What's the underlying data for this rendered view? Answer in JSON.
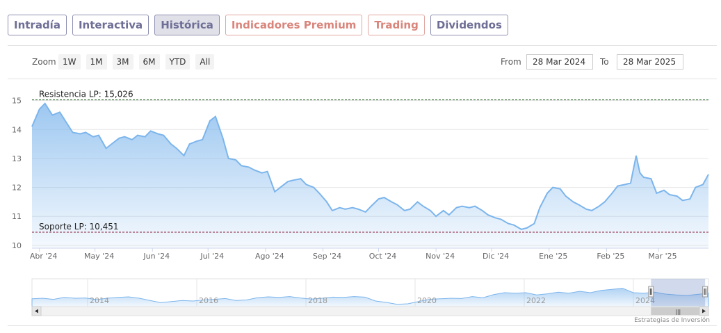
{
  "tabs": [
    {
      "label": "Intradía",
      "active": false,
      "premium": false
    },
    {
      "label": "Interactiva",
      "active": false,
      "premium": false
    },
    {
      "label": "Histórica",
      "active": true,
      "premium": false
    },
    {
      "label": "Indicadores Premium",
      "active": false,
      "premium": true
    },
    {
      "label": "Trading",
      "active": false,
      "premium": true
    },
    {
      "label": "Dividendos",
      "active": false,
      "premium": false
    }
  ],
  "toolbar": {
    "zoom_label": "Zoom",
    "zoom_buttons": [
      "1W",
      "1M",
      "3M",
      "6M",
      "YTD",
      "All"
    ],
    "from_label": "From",
    "from_value": "28 Mar 2024",
    "to_label": "To",
    "to_value": "28 Mar 2025"
  },
  "colors": {
    "line": "#7cb5ec",
    "resistance": "#2e6b2e",
    "support": "#8b1a3a",
    "tab_border": "#8e8eb2",
    "premium_tab": "#d9857b"
  },
  "chart_data": {
    "type": "area",
    "title": "",
    "xlabel": "",
    "ylabel": "",
    "x_start": "2024-03-28",
    "x_end": "2025-03-28",
    "ylim": [
      9.9,
      15.4
    ],
    "yticks": [
      10,
      11,
      12,
      13,
      14,
      15
    ],
    "xticks": [
      {
        "date": "2024-04-01",
        "label": "Abr '24"
      },
      {
        "date": "2024-05-01",
        "label": "May '24"
      },
      {
        "date": "2024-06-01",
        "label": "Jun '24"
      },
      {
        "date": "2024-07-01",
        "label": "Jul '24"
      },
      {
        "date": "2024-08-01",
        "label": "Ago '24"
      },
      {
        "date": "2024-09-01",
        "label": "Sep '24"
      },
      {
        "date": "2024-10-01",
        "label": "Oct '24"
      },
      {
        "date": "2024-11-01",
        "label": "Nov '24"
      },
      {
        "date": "2024-12-01",
        "label": "Dic '24"
      },
      {
        "date": "2025-01-01",
        "label": "Ene '25"
      },
      {
        "date": "2025-02-01",
        "label": "Feb '25"
      },
      {
        "date": "2025-03-01",
        "label": "Mar '25"
      }
    ],
    "grid": true,
    "series": [
      {
        "x": [
          "2024-03-28",
          "2024-04-01",
          "2024-04-04",
          "2024-04-08",
          "2024-04-12",
          "2024-04-16",
          "2024-04-19",
          "2024-04-23",
          "2024-04-26",
          "2024-04-30",
          "2024-05-03",
          "2024-05-07",
          "2024-05-10",
          "2024-05-14",
          "2024-05-17",
          "2024-05-21",
          "2024-05-24",
          "2024-05-28",
          "2024-05-31",
          "2024-06-04",
          "2024-06-07",
          "2024-06-11",
          "2024-06-14",
          "2024-06-18",
          "2024-06-21",
          "2024-06-25",
          "2024-06-28",
          "2024-07-02",
          "2024-07-05",
          "2024-07-09",
          "2024-07-12",
          "2024-07-16",
          "2024-07-19",
          "2024-07-23",
          "2024-07-26",
          "2024-07-30",
          "2024-08-02",
          "2024-08-06",
          "2024-08-09",
          "2024-08-13",
          "2024-08-16",
          "2024-08-20",
          "2024-08-23",
          "2024-08-27",
          "2024-08-30",
          "2024-09-03",
          "2024-09-06",
          "2024-09-10",
          "2024-09-13",
          "2024-09-17",
          "2024-09-20",
          "2024-09-24",
          "2024-09-27",
          "2024-10-01",
          "2024-10-04",
          "2024-10-08",
          "2024-10-11",
          "2024-10-15",
          "2024-10-18",
          "2024-10-22",
          "2024-10-25",
          "2024-10-29",
          "2024-11-01",
          "2024-11-05",
          "2024-11-08",
          "2024-11-12",
          "2024-11-15",
          "2024-11-19",
          "2024-11-22",
          "2024-11-26",
          "2024-11-29",
          "2024-12-03",
          "2024-12-06",
          "2024-12-10",
          "2024-12-13",
          "2024-12-17",
          "2024-12-20",
          "2024-12-24",
          "2024-12-27",
          "2024-12-31",
          "2025-01-03",
          "2025-01-07",
          "2025-01-10",
          "2025-01-14",
          "2025-01-17",
          "2025-01-21",
          "2025-01-24",
          "2025-01-28",
          "2025-01-31",
          "2025-02-04",
          "2025-02-07",
          "2025-02-11",
          "2025-02-14",
          "2025-02-17",
          "2025-02-19",
          "2025-02-21",
          "2025-02-25",
          "2025-02-28",
          "2025-03-04",
          "2025-03-07",
          "2025-03-11",
          "2025-03-14",
          "2025-03-18",
          "2025-03-21",
          "2025-03-25",
          "2025-03-28"
        ],
        "values": [
          14.1,
          14.7,
          14.9,
          14.5,
          14.6,
          14.2,
          13.9,
          13.85,
          13.9,
          13.75,
          13.8,
          13.35,
          13.5,
          13.7,
          13.75,
          13.65,
          13.8,
          13.75,
          13.95,
          13.85,
          13.8,
          13.5,
          13.35,
          13.1,
          13.5,
          13.6,
          13.65,
          14.3,
          14.45,
          13.7,
          13.0,
          12.95,
          12.75,
          12.7,
          12.6,
          12.5,
          12.55,
          11.85,
          12.0,
          12.2,
          12.25,
          12.3,
          12.1,
          12.0,
          11.8,
          11.5,
          11.2,
          11.3,
          11.25,
          11.3,
          11.25,
          11.15,
          11.35,
          11.6,
          11.65,
          11.5,
          11.4,
          11.2,
          11.25,
          11.5,
          11.35,
          11.2,
          11.0,
          11.2,
          11.05,
          11.3,
          11.35,
          11.3,
          11.35,
          11.2,
          11.05,
          10.95,
          10.9,
          10.75,
          10.7,
          10.55,
          10.6,
          10.75,
          11.3,
          11.8,
          12.0,
          11.95,
          11.7,
          11.5,
          11.4,
          11.25,
          11.2,
          11.35,
          11.5,
          11.8,
          12.05,
          12.1,
          12.15,
          13.1,
          12.5,
          12.35,
          12.3,
          11.8,
          11.9,
          11.75,
          11.7,
          11.55,
          11.6,
          12.0,
          12.1,
          12.45
        ]
      }
    ],
    "annotations": [
      {
        "label": "Resistencia LP: 15,026",
        "value": 15.026,
        "style": "dashed",
        "color_key": "resistance"
      },
      {
        "label": "Soporte LP: 10,451",
        "value": 10.451,
        "style": "dashed",
        "color_key": "support"
      }
    ],
    "navigator": {
      "labels": [
        "2014",
        "2016",
        "2018",
        "2020",
        "2022",
        "2024"
      ],
      "series": [
        0.28,
        0.3,
        0.26,
        0.33,
        0.3,
        0.31,
        0.25,
        0.3,
        0.33,
        0.35,
        0.3,
        0.22,
        0.14,
        0.18,
        0.22,
        0.2,
        0.24,
        0.26,
        0.29,
        0.22,
        0.24,
        0.32,
        0.35,
        0.33,
        0.36,
        0.31,
        0.27,
        0.3,
        0.34,
        0.33,
        0.36,
        0.34,
        0.2,
        0.15,
        0.08,
        0.1,
        0.18,
        0.26,
        0.28,
        0.3,
        0.29,
        0.36,
        0.32,
        0.43,
        0.5,
        0.48,
        0.5,
        0.42,
        0.46,
        0.52,
        0.48,
        0.55,
        0.5,
        0.58,
        0.62,
        0.66,
        0.5,
        0.48,
        0.52,
        0.45,
        0.42,
        0.4,
        0.44,
        0.48
      ],
      "selected_fraction": [
        0.915,
        0.995
      ]
    }
  },
  "credit": "Estrategias de Inversión"
}
